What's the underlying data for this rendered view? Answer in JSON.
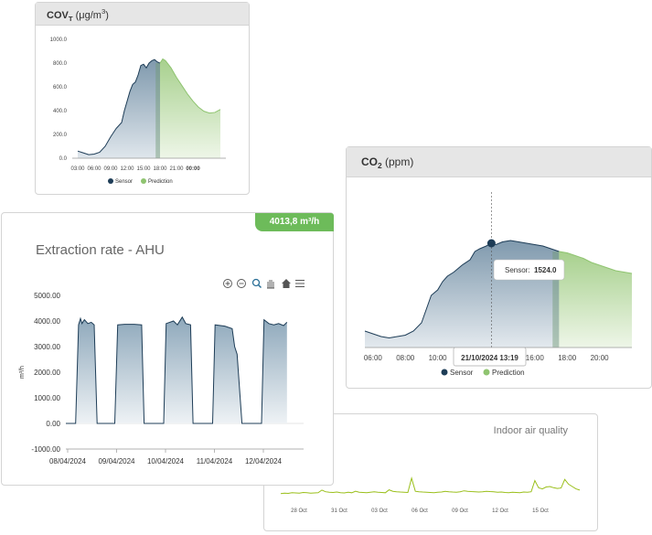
{
  "cov": {
    "title_main": "COV",
    "title_sub": "T",
    "title_unit_open": "(μg/m",
    "title_unit_sup": "3",
    "title_unit_close": ")",
    "chart_data": {
      "type": "area",
      "title": "COVT (μg/m3)",
      "x_ticks": [
        "03:00",
        "06:00",
        "09:00",
        "12:00",
        "15:00",
        "18:00",
        "21:00",
        "00:00"
      ],
      "y_ticks": [
        "0.0",
        "200.0",
        "400.0",
        "600.0",
        "800.0",
        "1000.0"
      ],
      "ylim": [
        0,
        1000
      ],
      "legend": [
        "Sensor",
        "Prediction"
      ],
      "legend_placement": "bottom",
      "colors": {
        "sensor": "#1e3d57",
        "prediction": "#8fc470"
      },
      "series": [
        {
          "name": "Sensor",
          "x": [
            0,
            1,
            2,
            3,
            4,
            5,
            6,
            7,
            8,
            8.5,
            9,
            9.5,
            10,
            10.5,
            11,
            11.5,
            12,
            12.5,
            13,
            13.5,
            14,
            14.5,
            15
          ],
          "y": [
            60,
            45,
            30,
            35,
            50,
            100,
            180,
            250,
            300,
            400,
            480,
            560,
            620,
            640,
            700,
            780,
            790,
            760,
            800,
            820,
            830,
            810,
            800
          ]
        },
        {
          "name": "Prediction",
          "x": [
            15,
            15.5,
            16,
            17,
            18,
            19,
            20,
            21,
            22,
            23,
            24,
            25,
            26
          ],
          "y": [
            800,
            835,
            820,
            760,
            680,
            610,
            540,
            480,
            430,
            395,
            380,
            385,
            410
          ]
        }
      ]
    }
  },
  "co2": {
    "title_main": "CO",
    "title_sub": "2",
    "title_unit": "(ppm)",
    "tooltip": {
      "label": "Sensor:",
      "value": "1524.0"
    },
    "crosshair_label": "21/10/2024 13:19",
    "chart_data": {
      "type": "area",
      "title": "CO2 (ppm)",
      "x_ticks": [
        "06:00",
        "08:00",
        "10:00",
        "12:00",
        "14:00",
        "16:00",
        "18:00",
        "20:00"
      ],
      "legend": [
        "Sensor",
        "Prediction"
      ],
      "legend_placement": "bottom",
      "colors": {
        "sensor": "#1e3d57",
        "prediction": "#8fc470"
      },
      "series": [
        {
          "name": "Sensor",
          "x": [
            5.5,
            6,
            6.5,
            7,
            7.5,
            8,
            8.5,
            9,
            9.3,
            9.6,
            10,
            10.3,
            10.6,
            11,
            11.5,
            12,
            12.3,
            12.6,
            13,
            13.32,
            13.6,
            14,
            14.5,
            15,
            15.5,
            16,
            16.5,
            17,
            17.5
          ],
          "y": [
            0.12,
            0.1,
            0.08,
            0.07,
            0.08,
            0.09,
            0.12,
            0.18,
            0.28,
            0.38,
            0.42,
            0.48,
            0.52,
            0.55,
            0.6,
            0.64,
            0.7,
            0.72,
            0.74,
            0.76,
            0.75,
            0.77,
            0.78,
            0.77,
            0.76,
            0.75,
            0.74,
            0.72,
            0.7
          ]
        },
        {
          "name": "Prediction",
          "x": [
            17.5,
            18,
            18.5,
            19,
            19.5,
            20,
            20.5,
            21,
            21.5,
            22
          ],
          "y": [
            0.7,
            0.69,
            0.67,
            0.65,
            0.62,
            0.6,
            0.58,
            0.56,
            0.55,
            0.54
          ]
        }
      ]
    }
  },
  "aq": {
    "title": "Indoor air quality",
    "chart_data": {
      "type": "line",
      "title": "Indoor air quality",
      "x_ticks": [
        "28 Oct",
        "31 Oct",
        "03 Oct",
        "06 Oct",
        "09 Oct",
        "12 Oct",
        "15 Oct"
      ],
      "colors": {
        "line": "#9abf1a"
      },
      "y": [
        0.2,
        0.22,
        0.21,
        0.24,
        0.23,
        0.22,
        0.25,
        0.24,
        0.22,
        0.23,
        0.24,
        0.35,
        0.28,
        0.26,
        0.25,
        0.27,
        0.24,
        0.23,
        0.26,
        0.24,
        0.3,
        0.26,
        0.25,
        0.24,
        0.26,
        0.28,
        0.26,
        0.25,
        0.24,
        0.36,
        0.3,
        0.28,
        0.27,
        0.26,
        0.25,
        0.85,
        0.3,
        0.28,
        0.27,
        0.26,
        0.25,
        0.24,
        0.26,
        0.27,
        0.3,
        0.28,
        0.27,
        0.26,
        0.28,
        0.32,
        0.3,
        0.29,
        0.28,
        0.27,
        0.28,
        0.3,
        0.29,
        0.28,
        0.26,
        0.27,
        0.25,
        0.24,
        0.26,
        0.25,
        0.24,
        0.27,
        0.26,
        0.28,
        0.75,
        0.45,
        0.4,
        0.48,
        0.5,
        0.45,
        0.42,
        0.44,
        0.8,
        0.6,
        0.5,
        0.4,
        0.35
      ]
    }
  },
  "extraction": {
    "badge": "4013,8 m³/h",
    "title": "Extraction rate - AHU",
    "toolbar_icons": [
      "zoom-in-icon",
      "zoom-out-icon",
      "magnify-icon",
      "pan-icon",
      "home-icon",
      "menu-icon"
    ],
    "chart_data": {
      "type": "area",
      "title": "Extraction rate - AHU",
      "ylabel": "m³/h",
      "ylim": [
        -1000,
        5000
      ],
      "y_ticks": [
        "5000.00",
        "4000.00",
        "3000.00",
        "2000.00",
        "1000.00",
        "0.00",
        "-1000.00"
      ],
      "x_ticks": [
        "08/04/2024",
        "09/04/2024",
        "10/04/2024",
        "11/04/2024",
        "12/04/2024"
      ],
      "colors": {
        "line": "#1e3d57",
        "fill_top": "#8ea8bb",
        "fill_bottom": "#eef2f5"
      },
      "points": [
        [
          0,
          0
        ],
        [
          0.2,
          0
        ],
        [
          0.26,
          3850
        ],
        [
          0.3,
          4100
        ],
        [
          0.33,
          3900
        ],
        [
          0.38,
          4050
        ],
        [
          0.45,
          3900
        ],
        [
          0.52,
          3950
        ],
        [
          0.58,
          3850
        ],
        [
          0.64,
          0
        ],
        [
          1.0,
          0
        ],
        [
          1.06,
          3850
        ],
        [
          1.2,
          3870
        ],
        [
          1.4,
          3870
        ],
        [
          1.55,
          3850
        ],
        [
          1.6,
          0
        ],
        [
          2.0,
          0
        ],
        [
          2.05,
          3900
        ],
        [
          2.2,
          4000
        ],
        [
          2.28,
          3850
        ],
        [
          2.38,
          4150
        ],
        [
          2.45,
          3900
        ],
        [
          2.55,
          3850
        ],
        [
          2.6,
          0
        ],
        [
          3.0,
          0
        ],
        [
          3.05,
          3850
        ],
        [
          3.25,
          3800
        ],
        [
          3.4,
          3700
        ],
        [
          3.45,
          3000
        ],
        [
          3.5,
          2700
        ],
        [
          3.6,
          0
        ],
        [
          4.0,
          0
        ],
        [
          4.05,
          4050
        ],
        [
          4.15,
          3900
        ],
        [
          4.25,
          3850
        ],
        [
          4.35,
          3900
        ],
        [
          4.45,
          3820
        ],
        [
          4.52,
          3950
        ]
      ]
    }
  }
}
